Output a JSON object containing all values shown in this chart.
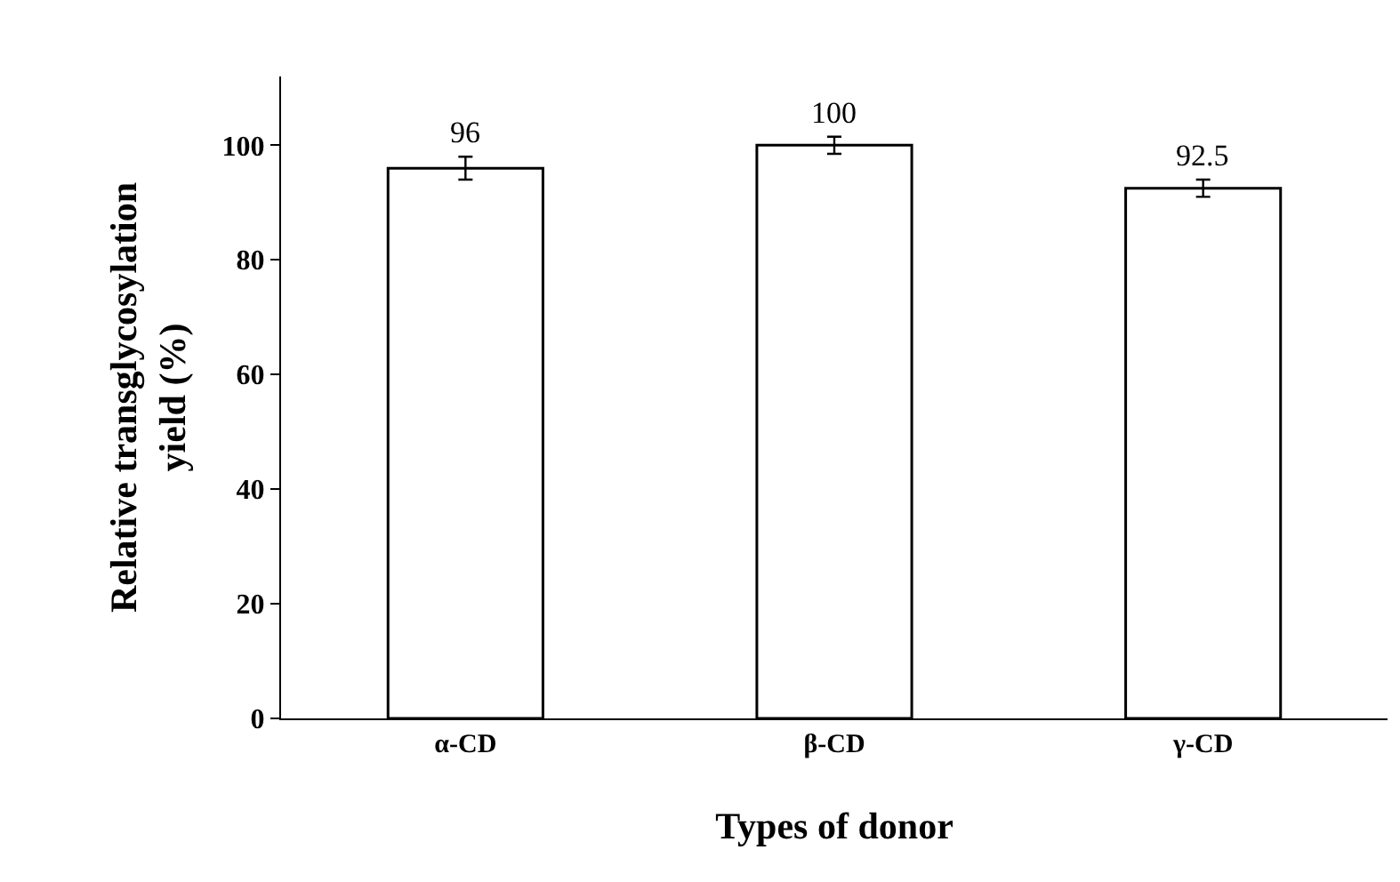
{
  "chart_data": {
    "type": "bar",
    "xlabel": "Types of donor",
    "ylabel": "Relative transglycosylation\nyield (%)",
    "categories": [
      "α-CD",
      "β-CD",
      "γ-CD"
    ],
    "values": [
      96,
      100,
      92.5
    ],
    "errors": [
      2,
      1.5,
      1.5
    ],
    "color": "#ffffff",
    "data_labels": true,
    "ylim": [
      0,
      112
    ],
    "yticks": [
      0,
      20,
      40,
      60,
      80,
      100
    ],
    "legend": false
  }
}
